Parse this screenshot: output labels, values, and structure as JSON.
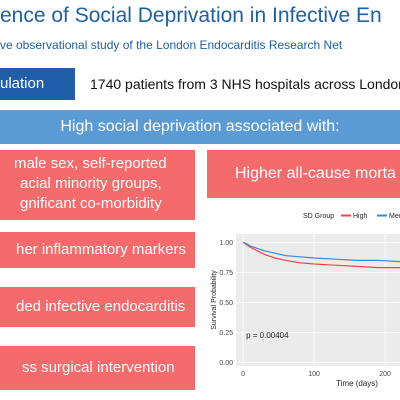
{
  "header": {
    "title": "ence of Social Deprivation in Infective En",
    "subtitle": "ve observational study of the London Endocarditis Research Net"
  },
  "population": {
    "label": "ulation",
    "text": "1740 patients from 3 NHS hospitals across London"
  },
  "banner": "High social deprivation associated with:",
  "findings": [
    [
      "male sex, self-reported",
      "acial minority groups,",
      "gnificant co-morbidity"
    ],
    [
      "her inflammatory markers"
    ],
    [
      "ded infective endocarditis"
    ],
    [
      "ss surgical intervention"
    ]
  ],
  "result": "Higher all-cause morta",
  "chart_data": {
    "type": "line",
    "legend_title": "SD Group",
    "ylabel": "Survival Probability",
    "xlabel": "Time (days)",
    "annotation": "p = 0.00404",
    "x": [
      0,
      5,
      10,
      20,
      30,
      45,
      60,
      80,
      100,
      130,
      160,
      190,
      221
    ],
    "series": [
      {
        "name": "High",
        "color": "#e8484b",
        "values": [
          1.0,
          0.98,
          0.96,
          0.93,
          0.9,
          0.87,
          0.85,
          0.83,
          0.82,
          0.81,
          0.8,
          0.79,
          0.79
        ]
      },
      {
        "name": "Med",
        "color": "#3a8ad6",
        "values": [
          1.0,
          0.99,
          0.97,
          0.95,
          0.93,
          0.91,
          0.89,
          0.88,
          0.87,
          0.86,
          0.85,
          0.85,
          0.84
        ]
      }
    ],
    "xlim": [
      -10,
      221
    ],
    "ylim": [
      -0.03,
      1.07
    ],
    "xticks": [
      0,
      100,
      200
    ],
    "yticks": [
      {
        "value": 0,
        "label": "0.00"
      },
      {
        "value": 0.25,
        "label": "0.25"
      },
      {
        "value": 0.5,
        "label": "0.50"
      },
      {
        "value": 0.75,
        "label": "0.75"
      },
      {
        "value": 1,
        "label": "1.00"
      }
    ],
    "grid": true
  }
}
